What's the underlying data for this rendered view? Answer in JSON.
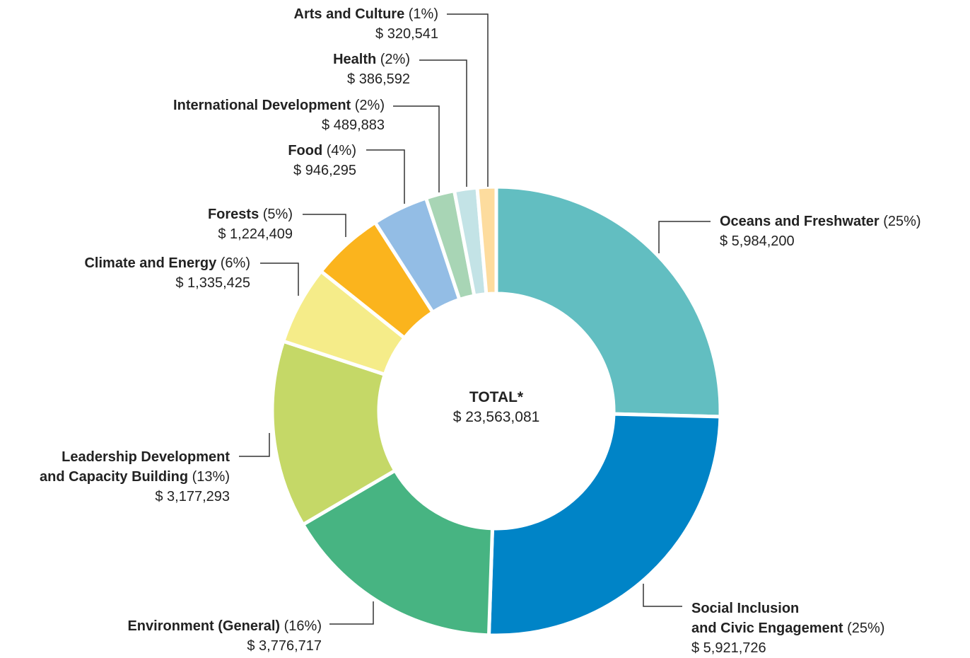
{
  "chart_data": {
    "type": "donut",
    "categories": [
      "Oceans and Freshwater",
      "Social Inclusion\nand Civic Engagement",
      "Environment (General)",
      "Leadership Development\nand Capacity Building",
      "Climate and Energy",
      "Forests",
      "Food",
      "International Development",
      "Health",
      "Arts and Culture"
    ],
    "values": [
      5984200,
      5921726,
      3776717,
      3177293,
      1335425,
      1224409,
      946295,
      489883,
      386592,
      320541
    ],
    "value_labels": [
      "$ 5,984,200",
      "$ 5,921,726",
      "$ 3,776,717",
      "$ 3,177,293",
      "$ 1,335,425",
      "$ 1,224,409",
      "$ 946,295",
      "$ 489,883",
      "$ 386,592",
      "$ 320,541"
    ],
    "percent_labels": [
      "(25%)",
      "(25%)",
      "(16%)",
      "(13%)",
      "(6%)",
      "(5%)",
      "(4%)",
      "(2%)",
      "(2%)",
      "(1%)"
    ],
    "colors": [
      "#62bec1",
      "#0084c7",
      "#47b482",
      "#c5d867",
      "#f5ec89",
      "#fbb41d",
      "#93bde5",
      "#a8d5b5",
      "#c3e3e6",
      "#fddc9e"
    ],
    "total_title": "TOTAL*",
    "total": 23563081,
    "total_label": "$ 23,563,081"
  }
}
